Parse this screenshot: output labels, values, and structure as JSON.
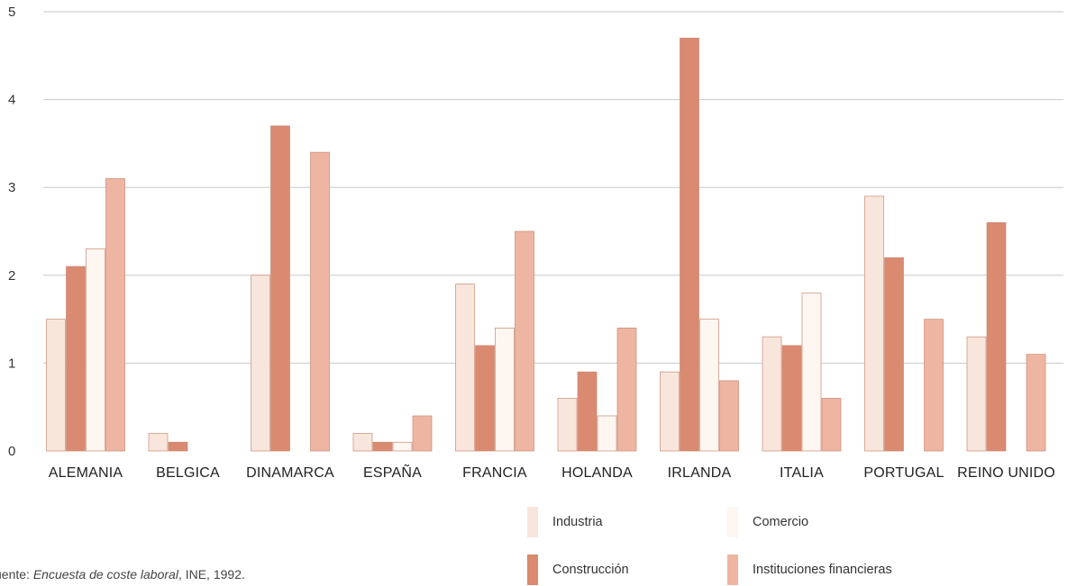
{
  "chart_data": {
    "type": "bar",
    "title": "",
    "xlabel": "",
    "ylabel": "",
    "ylim": [
      0,
      5
    ],
    "yticks": [
      "0",
      "1",
      "2",
      "3",
      "4",
      "5"
    ],
    "grid": true,
    "legend_position": "bottom-right",
    "categories": [
      "ALEMANIA",
      "BELGICA",
      "DINAMARCA",
      "ESPAÑA",
      "FRANCIA",
      "HOLANDA",
      "IRLANDA",
      "ITALIA",
      "PORTUGAL",
      "REINO UNIDO"
    ],
    "series": [
      {
        "name": "Industria",
        "color": "#f8e6dc",
        "values": [
          1.5,
          0.2,
          2.0,
          0.2,
          1.9,
          0.6,
          0.9,
          1.3,
          2.9,
          1.3
        ]
      },
      {
        "name": "Construcción",
        "color": "#d98a70",
        "values": [
          2.1,
          0.1,
          3.7,
          0.1,
          1.2,
          0.9,
          4.7,
          1.2,
          2.2,
          2.6
        ]
      },
      {
        "name": "Comercio",
        "color": "#fdf6f1",
        "values": [
          2.3,
          null,
          null,
          0.1,
          1.4,
          0.4,
          1.5,
          1.8,
          null,
          null
        ]
      },
      {
        "name": "Instituciones financieras",
        "color": "#eeb6a2",
        "values": [
          3.1,
          null,
          3.4,
          0.4,
          2.5,
          1.4,
          0.8,
          0.6,
          1.5,
          1.1
        ]
      }
    ]
  },
  "source": {
    "prefix": "uente: ",
    "title": "Encuesta de coste laboral",
    "suffix": ", INE, 1992."
  }
}
